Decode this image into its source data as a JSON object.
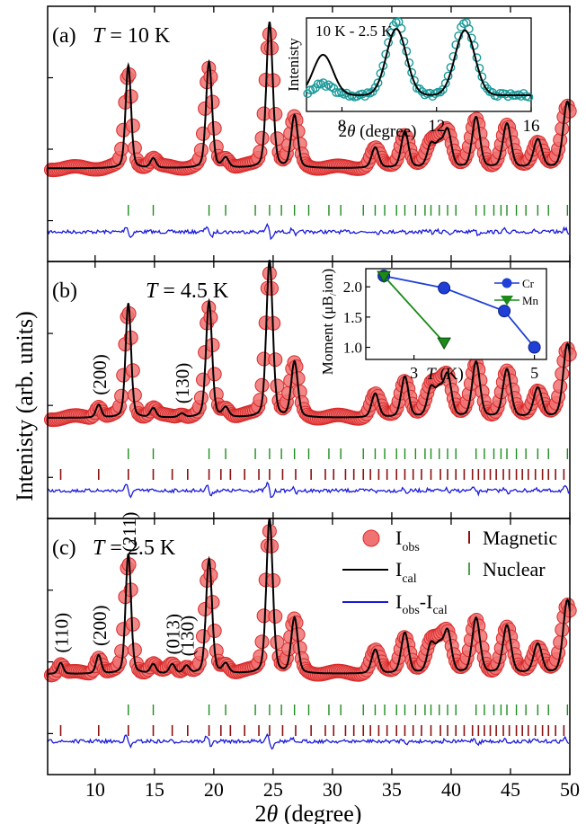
{
  "colors": {
    "observed": "#f07272",
    "observed_edge": "#d92b2b",
    "calculated": "#000000",
    "difference": "#1a1adb",
    "nuclear_tick": "#1e8c1e",
    "magnetic_tick": "#8b1010",
    "inset_a_points": "#1a9a9a",
    "inset_b_cr": "#1f3fd6",
    "inset_b_mn": "#1b8a1b"
  },
  "chart_data": [
    {
      "type": "scatter",
      "panel": "(a)",
      "panel_label": "(a)",
      "temperature_label": "T = 10 K",
      "xlabel": "2θ (degree)",
      "ylabel": "Intenisty (arb. units)",
      "xlim": [
        6,
        50
      ],
      "x_ticks": [
        10,
        15,
        20,
        25,
        30,
        35,
        40,
        45,
        50
      ],
      "peaks": [
        {
          "x": 12.8,
          "height": 0.65
        },
        {
          "x": 14.9,
          "height": 0.06
        },
        {
          "x": 19.6,
          "height": 0.67
        },
        {
          "x": 21.0,
          "height": 0.06
        },
        {
          "x": 24.7,
          "height": 0.92
        },
        {
          "x": 26.8,
          "height": 0.33
        },
        {
          "x": 33.6,
          "height": 0.13
        },
        {
          "x": 36.1,
          "height": 0.23
        },
        {
          "x": 38.3,
          "height": 0.14
        },
        {
          "x": 39.0,
          "height": 0.13
        },
        {
          "x": 39.7,
          "height": 0.23
        },
        {
          "x": 42.1,
          "height": 0.32
        },
        {
          "x": 44.7,
          "height": 0.28
        },
        {
          "x": 47.3,
          "height": 0.18
        },
        {
          "x": 49.8,
          "height": 0.42
        }
      ],
      "nuclear_ticks": [
        12.8,
        14.9,
        19.6,
        21.0,
        23.5,
        24.7,
        25.7,
        26.8,
        28.0,
        29.7,
        30.7,
        32.6,
        33.6,
        34.4,
        35.4,
        36.1,
        37.0,
        37.8,
        38.3,
        39.0,
        39.7,
        40.4,
        42.1,
        42.8,
        43.6,
        44.2,
        44.7,
        45.5,
        46.3,
        47.3,
        48.2,
        49.8
      ],
      "magnetic_ticks": [],
      "legend": [],
      "inset": {
        "type": "scatter",
        "title": "10 K - 2.5 K",
        "xlabel": "2θ (degree)",
        "ylabel": "Intenisty",
        "xlim": [
          6.5,
          16
        ],
        "x_ticks": [
          8,
          12,
          16
        ],
        "peaks_fit": [
          {
            "x": 7.2,
            "height": 0.55
          },
          {
            "x": 10.3,
            "height": 0.9
          },
          {
            "x": 13.2,
            "height": 0.88
          }
        ],
        "peaks_obs": [
          {
            "x": 7.2,
            "height": 0.15
          },
          {
            "x": 10.3,
            "height": 1.0
          },
          {
            "x": 13.2,
            "height": 1.0
          }
        ]
      }
    },
    {
      "type": "scatter",
      "panel": "(b)",
      "panel_label": "(b)",
      "temperature_label": "T = 4.5 K",
      "xlim": [
        6,
        50
      ],
      "peaks": [
        {
          "x": 10.3,
          "height": 0.07
        },
        {
          "x": 12.8,
          "height": 0.62
        },
        {
          "x": 14.9,
          "height": 0.05
        },
        {
          "x": 17.3,
          "height": 0.02
        },
        {
          "x": 19.6,
          "height": 0.63
        },
        {
          "x": 21.0,
          "height": 0.05
        },
        {
          "x": 24.7,
          "height": 0.85
        },
        {
          "x": 26.8,
          "height": 0.3
        },
        {
          "x": 33.6,
          "height": 0.13
        },
        {
          "x": 36.1,
          "height": 0.22
        },
        {
          "x": 38.3,
          "height": 0.15
        },
        {
          "x": 39.0,
          "height": 0.13
        },
        {
          "x": 39.7,
          "height": 0.22
        },
        {
          "x": 42.1,
          "height": 0.3
        },
        {
          "x": 44.7,
          "height": 0.26
        },
        {
          "x": 47.3,
          "height": 0.16
        },
        {
          "x": 49.8,
          "height": 0.4
        }
      ],
      "annotations": [
        {
          "x": 10.3,
          "text": "(200)"
        },
        {
          "x": 17.3,
          "text": "(130)"
        }
      ],
      "nuclear_ticks": [
        12.8,
        14.9,
        19.6,
        21.0,
        23.5,
        24.7,
        25.7,
        26.8,
        28.0,
        29.7,
        30.7,
        32.6,
        33.6,
        34.4,
        35.4,
        36.1,
        37.0,
        37.8,
        38.3,
        39.0,
        39.7,
        40.4,
        42.1,
        42.8,
        43.6,
        44.2,
        44.7,
        45.5,
        46.3,
        47.3,
        48.2,
        49.8
      ],
      "magnetic_ticks": [
        7.1,
        10.3,
        12.8,
        14.9,
        16.5,
        17.8,
        19.6,
        20.6,
        21.4,
        22.6,
        23.8,
        24.7,
        25.8,
        26.9,
        28.2,
        29.4,
        30.1,
        31.1,
        31.8,
        32.6,
        33.2,
        33.9,
        34.6,
        35.4,
        36.1,
        36.8,
        37.5,
        38.3,
        39.1,
        39.7,
        40.4,
        41.1,
        41.8,
        42.3,
        42.8,
        43.3,
        43.8,
        44.4,
        44.9,
        45.5,
        46.0,
        46.5,
        47.1,
        47.7,
        48.2,
        48.8,
        49.5
      ],
      "legend": [],
      "inset": {
        "type": "line",
        "xlabel": "T (K)",
        "ylabel": "Moment (μB/ion)",
        "xlim": [
          2.2,
          5.2
        ],
        "ylim": [
          0.8,
          2.3
        ],
        "x_ticks": [
          3,
          5
        ],
        "y_ticks": [
          1.0,
          1.5,
          2.0
        ],
        "series": [
          {
            "name": "Cr",
            "x": [
              2.5,
              3.5,
              4.5,
              5.0
            ],
            "y": [
              2.18,
              1.98,
              1.6,
              1.0
            ]
          },
          {
            "name": "Mn",
            "x": [
              2.5,
              3.5
            ],
            "y": [
              2.18,
              1.08
            ]
          }
        ]
      }
    },
    {
      "type": "scatter",
      "panel": "(c)",
      "panel_label": "(c)",
      "temperature_label": "T = 2.5 K",
      "xlim": [
        6,
        50
      ],
      "peaks": [
        {
          "x": 7.1,
          "height": 0.06
        },
        {
          "x": 10.3,
          "height": 0.1
        },
        {
          "x": 12.8,
          "height": 0.65
        },
        {
          "x": 14.9,
          "height": 0.05
        },
        {
          "x": 16.5,
          "height": 0.05
        },
        {
          "x": 17.7,
          "height": 0.04
        },
        {
          "x": 19.6,
          "height": 0.62
        },
        {
          "x": 21.0,
          "height": 0.05
        },
        {
          "x": 24.7,
          "height": 0.84
        },
        {
          "x": 26.8,
          "height": 0.3
        },
        {
          "x": 33.6,
          "height": 0.13
        },
        {
          "x": 36.1,
          "height": 0.22
        },
        {
          "x": 38.3,
          "height": 0.15
        },
        {
          "x": 39.0,
          "height": 0.13
        },
        {
          "x": 39.7,
          "height": 0.22
        },
        {
          "x": 42.1,
          "height": 0.3
        },
        {
          "x": 44.7,
          "height": 0.26
        },
        {
          "x": 47.3,
          "height": 0.16
        },
        {
          "x": 49.8,
          "height": 0.4
        }
      ],
      "annotations": [
        {
          "x": 7.1,
          "text": "(110)"
        },
        {
          "x": 10.3,
          "text": "(200)"
        },
        {
          "x": 12.8,
          "text": "(211)"
        },
        {
          "x": 16.5,
          "text": "(013)"
        },
        {
          "x": 17.7,
          "text": "(130)"
        }
      ],
      "nuclear_ticks": [
        12.8,
        14.9,
        19.6,
        21.0,
        23.5,
        24.7,
        25.7,
        26.8,
        28.0,
        29.7,
        30.7,
        32.6,
        33.6,
        34.4,
        35.4,
        36.1,
        37.0,
        37.8,
        38.3,
        39.0,
        39.7,
        40.4,
        42.1,
        42.8,
        43.6,
        44.2,
        44.7,
        45.5,
        46.3,
        47.3,
        48.2,
        49.8
      ],
      "magnetic_ticks": [
        7.1,
        10.3,
        12.8,
        14.9,
        16.5,
        17.8,
        19.6,
        20.6,
        21.4,
        22.6,
        23.8,
        24.7,
        25.8,
        26.9,
        28.2,
        29.4,
        30.1,
        31.1,
        31.8,
        32.6,
        33.2,
        33.9,
        34.6,
        35.4,
        36.1,
        36.8,
        37.5,
        38.3,
        39.1,
        39.7,
        40.4,
        41.1,
        41.8,
        42.3,
        42.8,
        43.3,
        43.8,
        44.4,
        44.9,
        45.5,
        46.0,
        46.5,
        47.1,
        47.7,
        48.2,
        48.8,
        49.5
      ],
      "legend": [
        {
          "label": "I_obs",
          "role": "observed"
        },
        {
          "label": "Magnetic",
          "role": "magnetic_tick"
        },
        {
          "label": "I_cal",
          "role": "calculated"
        },
        {
          "label": "Nuclear",
          "role": "nuclear_tick"
        },
        {
          "label": "I_obs-I_cal",
          "role": "difference"
        }
      ]
    }
  ]
}
